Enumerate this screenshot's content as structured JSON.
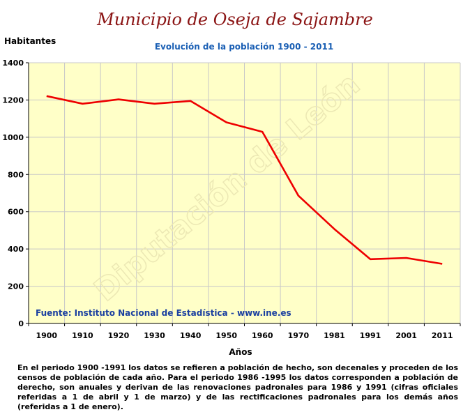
{
  "title": "Municipio de Oseja de Sajambre",
  "subtitle": "Evolución de la población 1900 - 2011",
  "watermark": "Diputación de León",
  "source_note": "Fuente: Instituto Nacional de Estadística - www.ine.es",
  "footnote": "En el periodo 1900 -1991 los datos se refieren a población de hecho, son decenales y proceden de los censos de población de cada año. Para el periodo 1986 -1995 los datos corresponden a población de derecho, son anuales y derivan de las renovaciones padronales para 1986 y 1991 (cifras oficiales referidas a 1 de abril y 1 de marzo) y de las rectificaciones padronales para los demás años (referidas a 1 de enero).",
  "colors": {
    "plot_background": "#ffffc8",
    "line": "#ee0000",
    "title": "#8b1414",
    "subtitle": "#1a5fb4",
    "source": "#1a3fa0"
  },
  "chart_data": {
    "type": "line",
    "title": "Evolución de la población 1900 - 2011",
    "xlabel": "Años",
    "ylabel": "Habitantes",
    "categories": [
      "1900",
      "1910",
      "1920",
      "1930",
      "1940",
      "1950",
      "1960",
      "1970",
      "1981",
      "1991",
      "2001",
      "2011"
    ],
    "series": [
      {
        "values": [
          1221,
          1180,
          1203,
          1180,
          1195,
          1080,
          1029,
          686,
          507,
          345,
          352,
          320
        ]
      }
    ],
    "ylim": [
      0,
      1400
    ],
    "yticks": [
      0,
      200,
      400,
      600,
      800,
      1000,
      1200,
      1400
    ],
    "grid": true,
    "legend": "none"
  }
}
